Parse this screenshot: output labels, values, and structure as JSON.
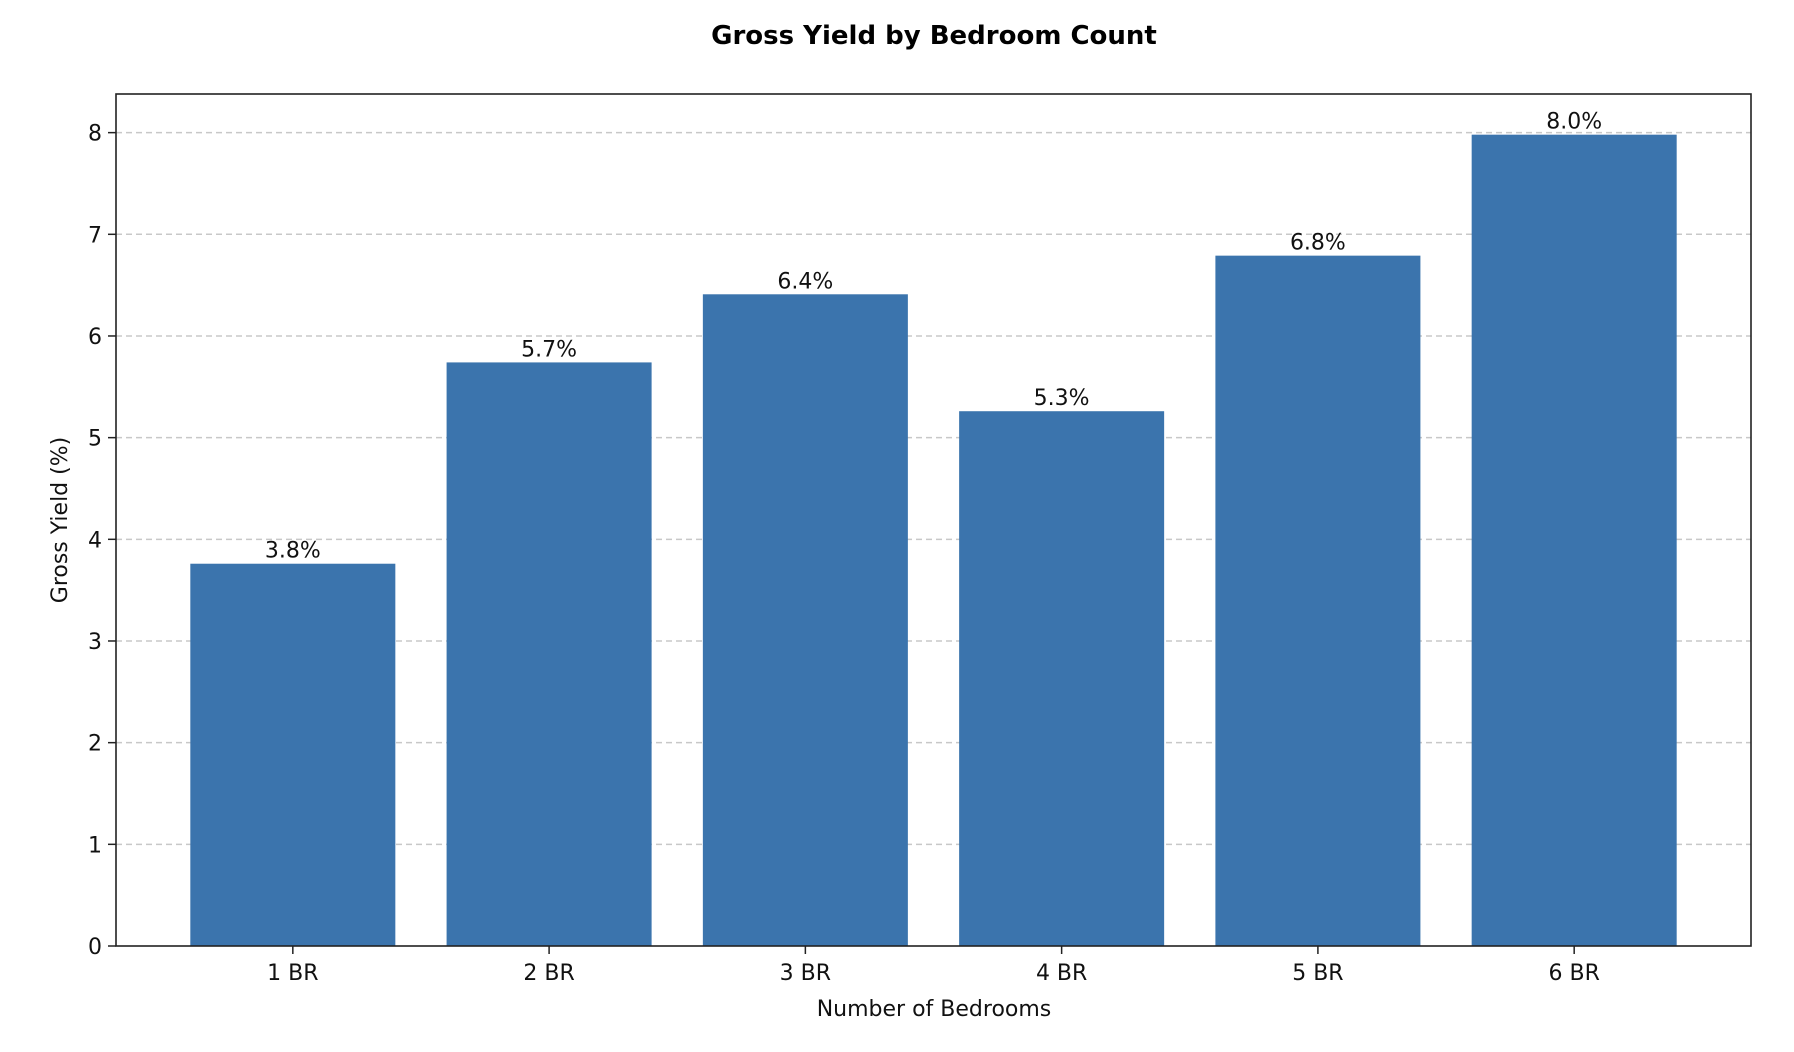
{
  "chart_data": {
    "type": "bar",
    "title": "Gross Yield by Bedroom Count",
    "xlabel": "Number of Bedrooms",
    "ylabel": "Gross Yield (%)",
    "categories": [
      "1 BR",
      "2 BR",
      "3 BR",
      "4 BR",
      "5 BR",
      "6 BR"
    ],
    "values": [
      3.76,
      5.74,
      6.41,
      5.26,
      6.79,
      7.98
    ],
    "data_labels": [
      "3.8%",
      "5.7%",
      "6.4%",
      "5.3%",
      "6.8%",
      "8.0%"
    ],
    "ylim": [
      0,
      8.38
    ],
    "yticks": [
      "0",
      "1",
      "2",
      "3",
      "4",
      "5",
      "6",
      "7",
      "8"
    ],
    "grid": "y-dashed",
    "bar_color": "#3b74ad"
  }
}
